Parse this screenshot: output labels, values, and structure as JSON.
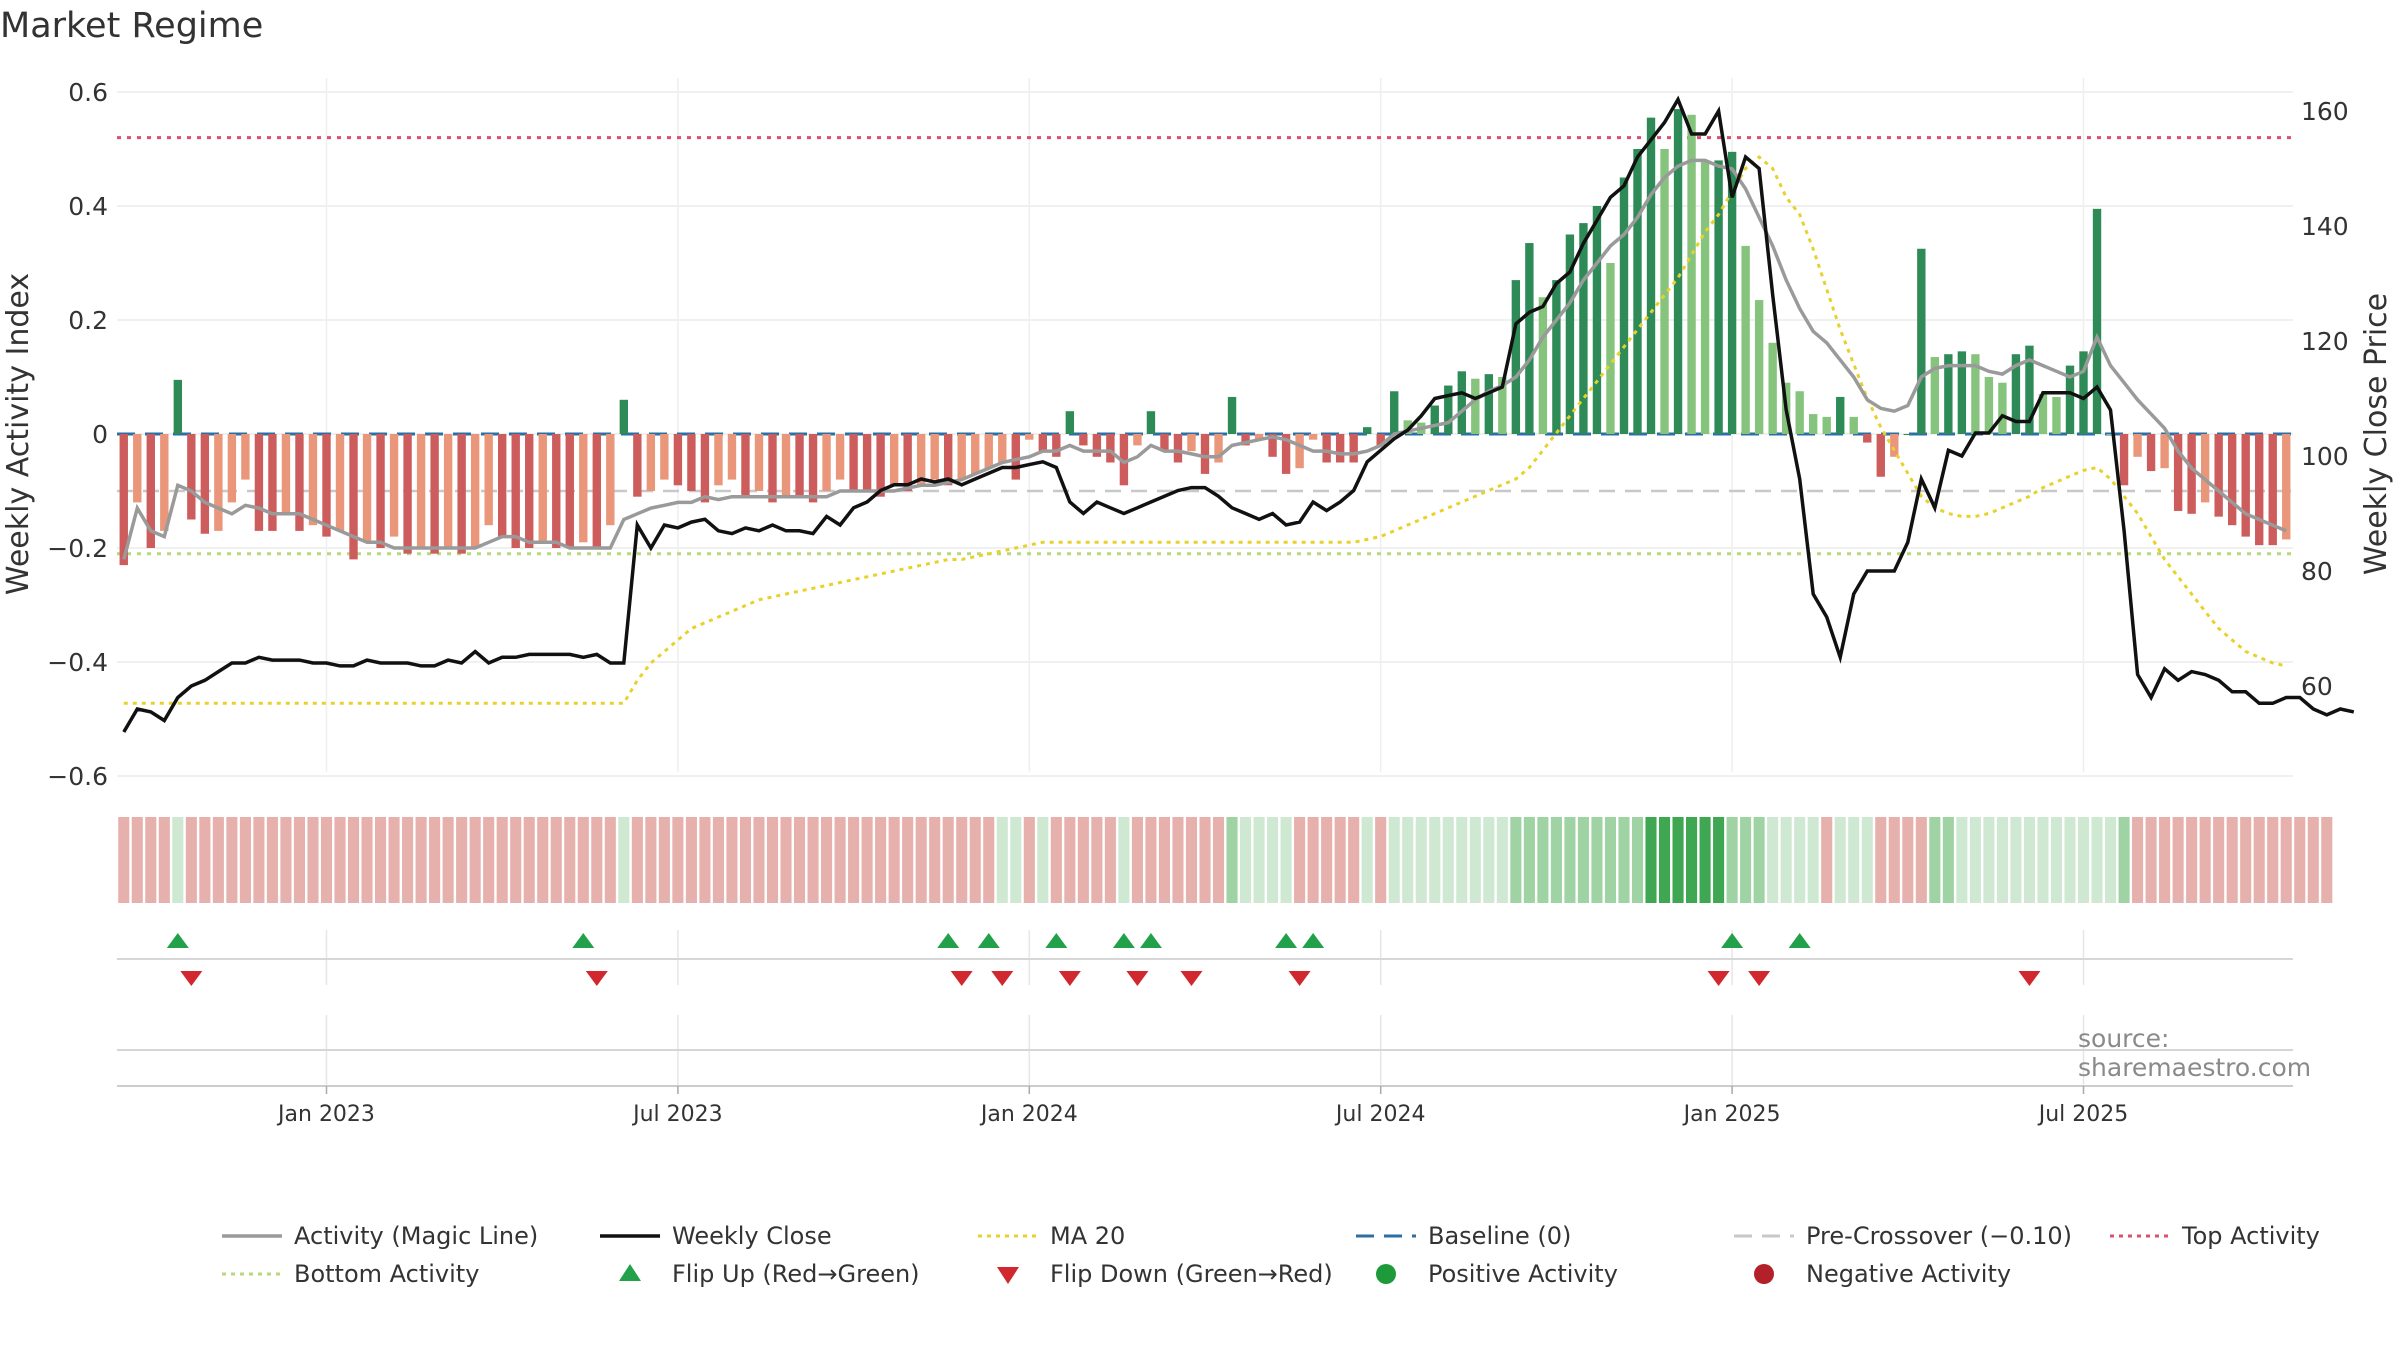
{
  "title": "Market Regime",
  "source_note": "source: sharemaestro.com",
  "chart_data": {
    "type": "bar",
    "title": "Market Regime",
    "y_left_label": "Weekly Activity Index",
    "y_right_label": "Weekly Close Price",
    "y_left_ticks": [
      "0.6",
      "0.4",
      "0.2",
      "0",
      "−0.2",
      "−0.4",
      "−0.6"
    ],
    "y_left_tick_values": [
      0.6,
      0.4,
      0.2,
      0,
      -0.2,
      -0.4,
      -0.6
    ],
    "y_right_ticks": [
      "160",
      "140",
      "120",
      "100",
      "80",
      "60"
    ],
    "y_right_tick_values": [
      160,
      140,
      120,
      100,
      80,
      60
    ],
    "ylim_left": [
      -0.6,
      0.6
    ],
    "ylim_right": [
      47,
      164
    ],
    "x_ticks": [
      "Jan 2023",
      "Jul 2023",
      "Jan 2024",
      "Jul 2024",
      "Jan 2025",
      "Jul 2025"
    ],
    "x_tick_weeks": [
      15,
      41,
      67,
      93,
      119,
      145
    ],
    "x_start": "2022-09-26",
    "x_unit": "week",
    "reference_lines": {
      "top_activity": 0.52,
      "bottom_activity": -0.21,
      "pre_crossover": -0.1,
      "baseline": 0
    },
    "activity_index": [
      -0.23,
      -0.12,
      -0.2,
      -0.17,
      0.095,
      -0.15,
      -0.175,
      -0.17,
      -0.12,
      -0.08,
      -0.17,
      -0.17,
      -0.14,
      -0.17,
      -0.16,
      -0.18,
      -0.17,
      -0.22,
      -0.19,
      -0.2,
      -0.18,
      -0.21,
      -0.2,
      -0.21,
      -0.2,
      -0.21,
      -0.2,
      -0.16,
      -0.18,
      -0.2,
      -0.2,
      -0.19,
      -0.2,
      -0.2,
      -0.19,
      -0.2,
      -0.16,
      0.06,
      -0.11,
      -0.1,
      -0.08,
      -0.09,
      -0.1,
      -0.12,
      -0.09,
      -0.08,
      -0.11,
      -0.1,
      -0.12,
      -0.11,
      -0.11,
      -0.12,
      -0.1,
      -0.08,
      -0.1,
      -0.1,
      -0.11,
      -0.09,
      -0.1,
      -0.09,
      -0.08,
      -0.09,
      -0.08,
      -0.07,
      -0.06,
      -0.05,
      -0.08,
      -0.01,
      -0.03,
      -0.04,
      0.04,
      -0.02,
      -0.04,
      -0.05,
      -0.09,
      -0.02,
      0.04,
      -0.03,
      -0.05,
      -0.03,
      -0.07,
      -0.05,
      0.065,
      -0.02,
      -0.01,
      -0.04,
      -0.07,
      -0.06,
      -0.01,
      -0.05,
      -0.05,
      -0.05,
      0.012,
      -0.02,
      0.075,
      0.024,
      0.02,
      0.05,
      0.085,
      0.11,
      0.097,
      0.105,
      0.1,
      0.27,
      0.335,
      0.24,
      0.27,
      0.35,
      0.37,
      0.4,
      0.3,
      0.45,
      0.5,
      0.555,
      0.5,
      0.57,
      0.56,
      0.48,
      0.48,
      0.495,
      0.33,
      0.235,
      0.16,
      0.09,
      0.075,
      0.035,
      0.03,
      0.065,
      0.03,
      -0.015,
      -0.075,
      -0.04,
      0.0,
      0.325,
      0.135,
      0.14,
      0.145,
      0.14,
      0.1,
      0.09,
      0.14,
      0.155,
      0.07,
      0.065,
      0.12,
      0.145,
      0.395,
      0.0,
      -0.09,
      -0.04,
      -0.065,
      -0.06,
      -0.135,
      -0.14,
      -0.12,
      -0.145,
      -0.16,
      -0.18,
      -0.195,
      -0.195,
      -0.185
    ],
    "magic_line": [
      -0.22,
      -0.13,
      -0.17,
      -0.18,
      -0.09,
      -0.1,
      -0.12,
      -0.13,
      -0.14,
      -0.125,
      -0.13,
      -0.14,
      -0.14,
      -0.14,
      -0.15,
      -0.16,
      -0.17,
      -0.18,
      -0.19,
      -0.19,
      -0.2,
      -0.2,
      -0.2,
      -0.2,
      -0.2,
      -0.2,
      -0.2,
      -0.19,
      -0.18,
      -0.18,
      -0.19,
      -0.19,
      -0.19,
      -0.2,
      -0.2,
      -0.2,
      -0.2,
      -0.15,
      -0.14,
      -0.13,
      -0.125,
      -0.12,
      -0.12,
      -0.11,
      -0.115,
      -0.11,
      -0.11,
      -0.11,
      -0.11,
      -0.11,
      -0.11,
      -0.11,
      -0.11,
      -0.1,
      -0.1,
      -0.1,
      -0.1,
      -0.1,
      -0.095,
      -0.09,
      -0.09,
      -0.085,
      -0.08,
      -0.07,
      -0.06,
      -0.05,
      -0.045,
      -0.04,
      -0.03,
      -0.03,
      -0.02,
      -0.03,
      -0.03,
      -0.03,
      -0.05,
      -0.04,
      -0.02,
      -0.03,
      -0.03,
      -0.035,
      -0.04,
      -0.04,
      -0.02,
      -0.015,
      -0.01,
      -0.005,
      -0.01,
      -0.02,
      -0.03,
      -0.03,
      -0.035,
      -0.035,
      -0.03,
      -0.02,
      0.0,
      0.005,
      0.01,
      0.015,
      0.02,
      0.04,
      0.06,
      0.075,
      0.085,
      0.1,
      0.13,
      0.17,
      0.2,
      0.23,
      0.27,
      0.3,
      0.33,
      0.35,
      0.38,
      0.42,
      0.45,
      0.47,
      0.48,
      0.48,
      0.47,
      0.465,
      0.43,
      0.38,
      0.33,
      0.27,
      0.22,
      0.18,
      0.16,
      0.13,
      0.1,
      0.06,
      0.045,
      0.04,
      0.05,
      0.1,
      0.115,
      0.12,
      0.12,
      0.12,
      0.11,
      0.105,
      0.12,
      0.13,
      0.12,
      0.11,
      0.1,
      0.11,
      0.17,
      0.12,
      0.09,
      0.06,
      0.035,
      0.01,
      -0.03,
      -0.06,
      -0.08,
      -0.1,
      -0.12,
      -0.14,
      -0.15,
      -0.16,
      -0.17
    ],
    "weekly_close": [
      52,
      56,
      55.5,
      54,
      58,
      60,
      61,
      62.5,
      64,
      64,
      65,
      64.5,
      64.5,
      64.5,
      64,
      64,
      63.5,
      63.5,
      64.5,
      64,
      64,
      64,
      63.5,
      63.5,
      64.5,
      64,
      66,
      64,
      65,
      65,
      65.5,
      65.5,
      65.5,
      65.5,
      65,
      65.5,
      64,
      64,
      88,
      84,
      88,
      87.5,
      88.5,
      89,
      87,
      86.5,
      87.5,
      87,
      88,
      87,
      87,
      86.5,
      89.5,
      88,
      91,
      92,
      94,
      95,
      95,
      96,
      95.5,
      96,
      95,
      96,
      97,
      98,
      98,
      98.5,
      99,
      98,
      92,
      90,
      92,
      91,
      90,
      91,
      92,
      93,
      94,
      94.5,
      94.5,
      93,
      91,
      90,
      89,
      90,
      88,
      88.5,
      92,
      90.5,
      92,
      94,
      99,
      101,
      103,
      104.5,
      107,
      110,
      110.5,
      111,
      110,
      111,
      112,
      123,
      125,
      126,
      130,
      132,
      137,
      141,
      145,
      147,
      152,
      155,
      158,
      162,
      156,
      156,
      160,
      145,
      152,
      150,
      128,
      108,
      96,
      76,
      72,
      65,
      76,
      80,
      80,
      80,
      85,
      96,
      91,
      101,
      100,
      104,
      104,
      107,
      106,
      106,
      111,
      111,
      111,
      110,
      112,
      108,
      87,
      62,
      58,
      63,
      61,
      62.5,
      62,
      61,
      59,
      59,
      57,
      57,
      58,
      58,
      56,
      55,
      56,
      55.5
    ],
    "ma20": [
      57,
      57,
      57,
      57,
      57,
      57,
      57,
      57,
      57,
      57,
      57,
      57,
      57,
      57,
      57,
      57,
      57,
      57,
      57,
      57,
      57,
      57,
      57,
      57,
      57,
      57,
      57,
      57,
      57,
      57,
      57,
      57,
      57,
      57,
      57,
      57,
      57,
      57,
      61,
      64,
      66,
      68,
      70,
      71,
      72,
      73,
      74,
      75,
      75.5,
      76,
      76.5,
      77,
      77.5,
      78,
      78.5,
      79,
      79.5,
      80,
      80.5,
      81,
      81.5,
      82,
      82,
      82.5,
      83,
      83.5,
      84,
      84.5,
      85,
      85,
      85,
      85,
      85,
      85,
      85,
      85,
      85,
      85,
      85,
      85,
      85,
      85,
      85,
      85,
      85,
      85,
      85,
      85,
      85,
      85,
      85,
      85,
      85.5,
      86,
      87,
      88,
      89,
      90,
      91,
      92,
      93,
      94,
      95,
      96,
      98,
      101,
      104,
      107,
      110,
      113,
      116,
      119,
      122,
      125,
      128,
      131,
      135,
      139,
      142,
      146,
      150,
      152,
      150,
      145,
      142,
      136,
      129,
      122,
      116,
      110,
      105,
      101,
      97,
      93,
      91,
      90,
      89.5,
      89.5,
      90,
      91,
      92,
      93,
      94.5,
      95.5,
      96.5,
      97.5,
      98,
      96,
      93,
      90,
      86,
      82,
      79,
      76,
      73,
      70,
      68,
      66,
      65,
      64,
      63.5
    ],
    "regime_band": [
      1,
      1,
      1,
      1,
      2,
      1,
      1,
      1,
      1,
      1,
      1,
      1,
      1,
      1,
      1,
      1,
      1,
      1,
      1,
      1,
      1,
      1,
      1,
      1,
      1,
      1,
      1,
      1,
      1,
      1,
      1,
      1,
      1,
      1,
      1,
      1,
      1,
      2,
      1,
      1,
      1,
      1,
      1,
      1,
      1,
      1,
      1,
      1,
      1,
      1,
      1,
      1,
      1,
      1,
      1,
      1,
      1,
      1,
      1,
      1,
      1,
      1,
      1,
      1,
      1,
      2,
      2,
      1,
      2,
      1,
      1,
      1,
      1,
      1,
      2,
      1,
      1,
      1,
      1,
      1,
      1,
      1,
      3,
      2,
      2,
      2,
      2,
      1,
      1,
      1,
      1,
      1,
      2,
      1,
      2,
      2,
      2,
      2,
      2,
      2,
      2,
      2,
      2,
      3,
      3,
      3,
      3,
      3,
      3,
      3,
      3,
      3,
      3,
      4,
      4,
      4,
      4,
      4,
      4,
      3,
      3,
      3,
      2,
      2,
      2,
      2,
      1,
      2,
      2,
      2,
      1,
      1,
      1,
      1,
      3,
      3,
      2,
      2,
      2,
      2,
      2,
      2,
      2,
      2,
      2,
      2,
      2,
      2,
      3,
      1,
      1,
      1,
      1,
      1,
      1,
      1,
      1,
      1,
      1,
      1,
      1,
      1,
      1,
      1
    ],
    "flip_up_weeks": [
      4,
      34,
      61,
      64,
      69,
      74,
      76,
      86,
      88,
      119,
      124
    ],
    "flip_down_weeks": [
      5,
      35,
      62,
      65,
      70,
      75,
      79,
      87,
      118,
      121,
      141
    ],
    "legend": [
      {
        "label": "Activity (Magic Line)",
        "kind": "line",
        "color": "#9a9a9a"
      },
      {
        "label": "Weekly Close",
        "kind": "line",
        "color": "#111111"
      },
      {
        "label": "MA 20",
        "kind": "dotted",
        "color": "#e8d22a"
      },
      {
        "label": "Baseline (0)",
        "kind": "dashed",
        "color": "#2c6fa5"
      },
      {
        "label": "Pre-Crossover (−0.10)",
        "kind": "dashed",
        "color": "#c8c8c8"
      },
      {
        "label": "Top Activity",
        "kind": "dotted",
        "color": "#d9516e"
      },
      {
        "label": "Bottom Activity",
        "kind": "dotted",
        "color": "#b7d97a"
      },
      {
        "label": "Flip Up (Red→Green)",
        "kind": "tri-up",
        "color": "#22a04a"
      },
      {
        "label": "Flip Down (Green→Red)",
        "kind": "tri-down",
        "color": "#d0282e"
      },
      {
        "label": "Positive Activity",
        "kind": "dot",
        "color": "#1f9a3a"
      },
      {
        "label": "Negative Activity",
        "kind": "dot",
        "color": "#b3202a"
      }
    ],
    "colors": {
      "pos_strong": "#2e8b57",
      "pos_light": "#86c47e",
      "neg_strong": "#cd5c5c",
      "neg_light": "#e9967a",
      "band_neg": "#e6b0ac",
      "band_pos1": "#cfe8d2",
      "band_pos2": "#9fd3a4",
      "band_pos3": "#6cbd78",
      "band_pos4": "#3fa652"
    }
  }
}
